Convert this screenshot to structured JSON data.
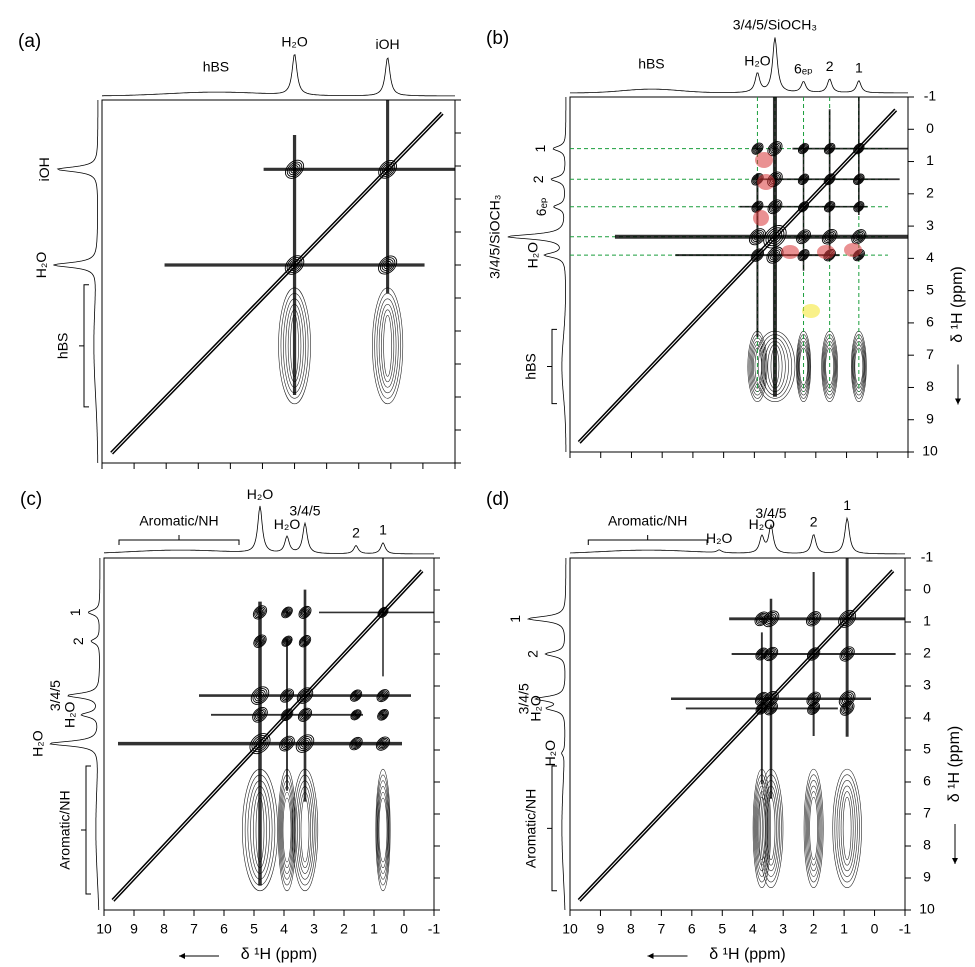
{
  "chart_data": [
    {
      "type": "contour",
      "label": "(a)",
      "xlim": [
        10,
        -1
      ],
      "ylim": [
        -1,
        10
      ],
      "xticks": [
        10,
        9,
        8,
        7,
        6,
        5,
        4,
        3,
        2,
        1,
        0,
        -1
      ],
      "yticks": [
        -1,
        0,
        1,
        2,
        3,
        4,
        5,
        6,
        7,
        8,
        9,
        10
      ],
      "x_tick_labels": false,
      "y_tick_labels": false,
      "top_bracket": false,
      "guides": false,
      "peaks": [
        {
          "label": "H₂O",
          "ppm": 4.0,
          "intensity": 0.75,
          "color": "#1aa0e0"
        },
        {
          "label": "iOH",
          "ppm": 1.1,
          "intensity": 0.7,
          "color": "#e6007e"
        }
      ],
      "ranges": [
        {
          "label": "hBS",
          "from": 8.3,
          "to": 4.6,
          "color": "#999999"
        }
      ]
    },
    {
      "type": "contour",
      "label": "(b)",
      "xlim": [
        10,
        -1
      ],
      "ylim": [
        -1,
        10
      ],
      "xticks": [
        10,
        9,
        8,
        7,
        6,
        5,
        4,
        3,
        2,
        1,
        0,
        -1
      ],
      "yticks": [
        -1,
        0,
        1,
        2,
        3,
        4,
        5,
        6,
        7,
        8,
        9,
        10
      ],
      "x_tick_labels": false,
      "y_tick_labels": true,
      "top_bracket": false,
      "guides": true,
      "y_label": "δ ¹H (ppm)",
      "peaks": [
        {
          "label": "3/4/5/SiOCH₃",
          "ppm": 3.33,
          "intensity": 1.0,
          "color": "#1a9e3c"
        },
        {
          "label": "H₂O",
          "ppm": 3.9,
          "intensity": 0.35,
          "color": "#1aa0e0"
        },
        {
          "label": "6ₑₚ",
          "ppm": 2.4,
          "intensity": 0.2,
          "color": "#1a9e3c"
        },
        {
          "label": "2",
          "ppm": 1.55,
          "intensity": 0.25,
          "color": "#1a9e3c"
        },
        {
          "label": "1",
          "ppm": 0.6,
          "intensity": 0.22,
          "color": "#1a9e3c"
        }
      ],
      "ranges": [
        {
          "label": "hBS",
          "from": 8.5,
          "to": 6.2,
          "color": "#999999"
        }
      ]
    },
    {
      "type": "contour",
      "label": "(c)",
      "xlim": [
        10,
        -1
      ],
      "ylim": [
        -1,
        10
      ],
      "xticks": [
        10,
        9,
        8,
        7,
        6,
        5,
        4,
        3,
        2,
        1,
        0,
        -1
      ],
      "yticks": [
        -1,
        0,
        1,
        2,
        3,
        4,
        5,
        6,
        7,
        8,
        9,
        10
      ],
      "x_tick_labels": true,
      "y_tick_labels": false,
      "top_bracket": true,
      "guides": false,
      "x_label": "δ ¹H (ppm)",
      "peaks": [
        {
          "label": "H₂O",
          "ppm": 4.8,
          "intensity": 0.85,
          "color": "#2e3192"
        },
        {
          "label": "3/4/5",
          "ppm": 3.3,
          "intensity": 0.55,
          "color": "#1a9e3c"
        },
        {
          "label": "H₂O",
          "ppm": 3.9,
          "intensity": 0.3,
          "color": "#1aa0e0"
        },
        {
          "label": "2",
          "ppm": 1.6,
          "intensity": 0.15,
          "color": "#1a9e3c"
        },
        {
          "label": "1",
          "ppm": 0.7,
          "intensity": 0.2,
          "color": "#1a9e3c"
        }
      ],
      "ranges": [
        {
          "label": "Aromatic/NH",
          "from": 9.5,
          "to": 5.5,
          "color": "#e8001c"
        }
      ]
    },
    {
      "type": "contour",
      "label": "(d)",
      "xlim": [
        10,
        -1
      ],
      "ylim": [
        -1,
        10
      ],
      "xticks": [
        10,
        9,
        8,
        7,
        6,
        5,
        4,
        3,
        2,
        1,
        0,
        -1
      ],
      "yticks": [
        -1,
        0,
        1,
        2,
        3,
        4,
        5,
        6,
        7,
        8,
        9,
        10
      ],
      "x_tick_labels": true,
      "y_tick_labels": true,
      "top_bracket": true,
      "guides": false,
      "x_label": "δ ¹H (ppm)",
      "y_label": "δ ¹H (ppm)",
      "peaks": [
        {
          "label": "H₂O",
          "ppm": 5.1,
          "intensity": 0.05,
          "color": "#2e3192"
        },
        {
          "label": "3/4/5",
          "ppm": 3.4,
          "intensity": 0.5,
          "color": "#1a9e3c"
        },
        {
          "label": "H₂O",
          "ppm": 3.7,
          "intensity": 0.3,
          "color": "#1aa0e0"
        },
        {
          "label": "2",
          "ppm": 2.0,
          "intensity": 0.35,
          "color": "#1a9e3c"
        },
        {
          "label": "1",
          "ppm": 0.9,
          "intensity": 0.65,
          "color": "#1a9e3c"
        }
      ],
      "ranges": [
        {
          "label": "Aromatic/NH",
          "from": 9.4,
          "to": 5.5,
          "color": "#e8001c"
        }
      ]
    }
  ]
}
